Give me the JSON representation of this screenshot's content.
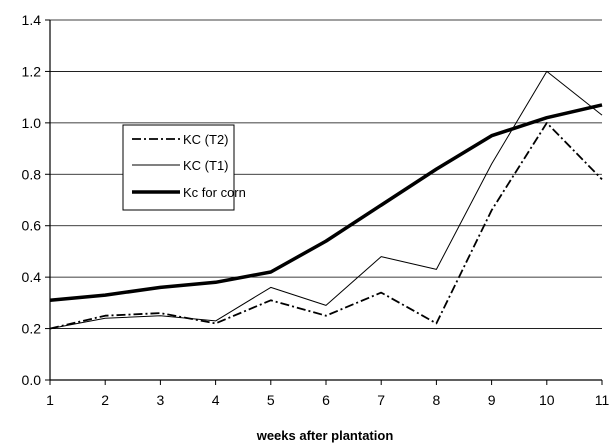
{
  "chart_data": {
    "type": "line",
    "title": "",
    "xlabel": "weeks after plantation",
    "ylabel": "",
    "x": [
      1,
      2,
      3,
      4,
      5,
      6,
      7,
      8,
      9,
      10,
      11
    ],
    "xticks": [
      "1",
      "2",
      "3",
      "4",
      "5",
      "6",
      "7",
      "8",
      "9",
      "10",
      "11"
    ],
    "yticks": [
      "0.0",
      "0.2",
      "0.4",
      "0.6",
      "0.8",
      "1.0",
      "1.2",
      "1.4"
    ],
    "ylim": [
      0,
      1.4
    ],
    "grid": "horizontal",
    "legend_position": "left",
    "series": [
      {
        "name": "KC (T2)",
        "style": "dash-dot",
        "color": "#000000",
        "values": [
          0.2,
          0.25,
          0.26,
          0.22,
          0.31,
          0.25,
          0.34,
          0.22,
          0.66,
          1.0,
          0.78
        ]
      },
      {
        "name": "KC (T1)",
        "style": "thin",
        "color": "#000000",
        "values": [
          0.2,
          0.24,
          0.25,
          0.23,
          0.36,
          0.29,
          0.48,
          0.43,
          0.84,
          1.2,
          1.03
        ]
      },
      {
        "name": "Kc for corn",
        "style": "thick",
        "color": "#000000",
        "values": [
          0.31,
          0.33,
          0.36,
          0.38,
          0.42,
          0.54,
          0.68,
          0.82,
          0.95,
          1.02,
          1.07
        ]
      }
    ]
  }
}
